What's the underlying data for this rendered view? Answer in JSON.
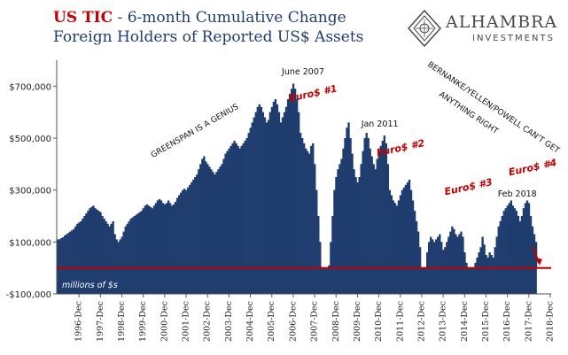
{
  "title": {
    "strong": "US TIC",
    "rest": " - 6-month Cumulative Change",
    "line2": "Foreign Holders of Reported US$ Assets"
  },
  "logo": {
    "name": "ALHAMBRA",
    "sub": "INVESTMENTS",
    "icon": "alhambra-diamond-icon"
  },
  "colors": {
    "bars": "#1f3d6e",
    "zero_line": "#c00000",
    "annotation_red": "#c00000",
    "title_red": "#c40000",
    "title_blue": "#1f3d6e"
  },
  "chart_data": {
    "type": "bar",
    "units_note": "millions of $s",
    "ylim": [
      -100000,
      800000
    ],
    "yticks": [
      -100000,
      100000,
      300000,
      500000,
      700000
    ],
    "ytick_labels": [
      "-$100,000",
      "$100,000",
      "$300,000",
      "$500,000",
      "$700,000"
    ],
    "x_start": "1995-12",
    "x_end": "2018-04",
    "xtick_labels": [
      "1996-Dec",
      "1997-Dec",
      "1998-Dec",
      "1999-Dec",
      "2000-Dec",
      "2001-Dec",
      "2002-Dec",
      "2003-Dec",
      "2004-Dec",
      "2005-Dec",
      "2006-Dec",
      "2007-Dec",
      "2008-Dec",
      "2009-Dec",
      "2010-Dec",
      "2011-Dec",
      "2012-Dec",
      "2013-Dec",
      "2014-Dec",
      "2015-Dec",
      "2016-Dec",
      "2017-Dec",
      "2018-Dec"
    ],
    "grid": false,
    "series": [
      {
        "values_by_year_from_1996": [
          [
            110000,
            115000,
            118000,
            125000,
            130000,
            135000,
            140000,
            145000,
            150000,
            160000,
            170000,
            175000
          ],
          [
            180000,
            190000,
            200000,
            210000,
            220000,
            230000,
            235000,
            240000,
            230000,
            225000,
            220000,
            215000
          ],
          [
            200000,
            190000,
            180000,
            170000,
            160000,
            170000,
            180000,
            130000,
            110000,
            100000,
            110000,
            120000
          ],
          [
            140000,
            160000,
            170000,
            180000,
            190000,
            195000,
            200000,
            205000,
            210000,
            215000,
            220000,
            230000
          ],
          [
            240000,
            245000,
            240000,
            235000,
            230000,
            240000,
            250000,
            260000,
            265000,
            260000,
            250000,
            245000
          ],
          [
            250000,
            260000,
            250000,
            240000,
            245000,
            255000,
            270000,
            280000,
            290000,
            300000,
            305000,
            300000
          ],
          [
            310000,
            320000,
            330000,
            340000,
            350000,
            360000,
            380000,
            400000,
            420000,
            430000,
            410000,
            400000
          ],
          [
            390000,
            380000,
            370000,
            360000,
            370000,
            380000,
            390000,
            400000,
            420000,
            440000,
            450000,
            460000
          ],
          [
            470000,
            480000,
            490000,
            480000,
            470000,
            460000,
            470000,
            480000,
            490000,
            500000,
            520000,
            540000
          ],
          [
            560000,
            580000,
            600000,
            620000,
            630000,
            620000,
            600000,
            580000,
            560000,
            570000,
            600000,
            620000
          ],
          [
            640000,
            650000,
            630000,
            600000,
            560000,
            580000,
            600000,
            620000,
            650000,
            670000,
            690000,
            710000
          ],
          [
            690000,
            650000,
            600000,
            520000,
            500000,
            480000,
            460000,
            450000,
            440000,
            470000,
            480000,
            400000
          ],
          [
            300000,
            200000,
            100000,
            0,
            -20000,
            -30000,
            -20000,
            10000,
            100000,
            200000,
            300000,
            350000
          ],
          [
            380000,
            400000,
            420000,
            460000,
            500000,
            540000,
            560000,
            500000,
            440000,
            380000,
            350000,
            330000
          ],
          [
            350000,
            400000,
            450000,
            500000,
            520000,
            500000,
            460000,
            430000,
            400000,
            380000,
            420000,
            450000
          ],
          [
            470000,
            490000,
            510000,
            480000,
            400000,
            300000,
            280000,
            260000,
            250000,
            240000,
            260000,
            280000
          ],
          [
            300000,
            310000,
            320000,
            330000,
            340000,
            300000,
            260000,
            220000,
            180000,
            140000,
            80000,
            -20000
          ],
          [
            -50000,
            0,
            60000,
            100000,
            120000,
            110000,
            100000,
            110000,
            120000,
            130000,
            100000,
            70000
          ],
          [
            80000,
            100000,
            120000,
            140000,
            160000,
            150000,
            130000,
            120000,
            130000,
            140000,
            120000,
            60000
          ],
          [
            20000,
            -10000,
            -40000,
            -60000,
            0,
            20000,
            40000,
            60000,
            80000,
            120000,
            90000,
            50000
          ],
          [
            40000,
            60000,
            50000,
            40000,
            80000,
            120000,
            160000,
            180000,
            200000,
            220000,
            230000,
            240000
          ],
          [
            250000,
            260000,
            240000,
            230000,
            220000,
            200000,
            180000,
            200000,
            230000,
            250000,
            260000,
            250000
          ],
          [
            200000,
            160000,
            130000,
            100000
          ]
        ]
      }
    ],
    "annotations": [
      {
        "text": "June 2007",
        "x": "2007-06",
        "y": 745000,
        "color": "dark"
      },
      {
        "text": "Euro$ #1",
        "x": "2007-12",
        "y": 660000,
        "color": "red"
      },
      {
        "text": "Jan 2011",
        "x": "2011-01",
        "y": 545000,
        "color": "dark"
      },
      {
        "text": "Euro$ #2",
        "x": "2012-01",
        "y": 450000,
        "color": "red"
      },
      {
        "text": "Euro$ #3",
        "x": "2015-03",
        "y": 300000,
        "color": "red"
      },
      {
        "text": "Feb 2018",
        "x": "2017-06",
        "y": 275000,
        "color": "dark"
      },
      {
        "text": "Euro$ #4",
        "x": "2018-03",
        "y": 375000,
        "color": "red"
      },
      {
        "text": "GREENSPAN IS A GENIUS",
        "x": "2002-06",
        "y": 520000,
        "color": "dark",
        "rotate": -30
      },
      {
        "text": "BERNANKE/YELLEN/POWELL CAN'T GET",
        "x": "2016-04",
        "y": 610000,
        "color": "dark",
        "rotate": 34
      },
      {
        "text": "ANYTHING RIGHT",
        "x": "2015-02",
        "y": 590000,
        "color": "dark",
        "rotate": 34
      }
    ],
    "arrow": {
      "from": "2018-02",
      "to": "2018-05",
      "direction": "down"
    }
  }
}
